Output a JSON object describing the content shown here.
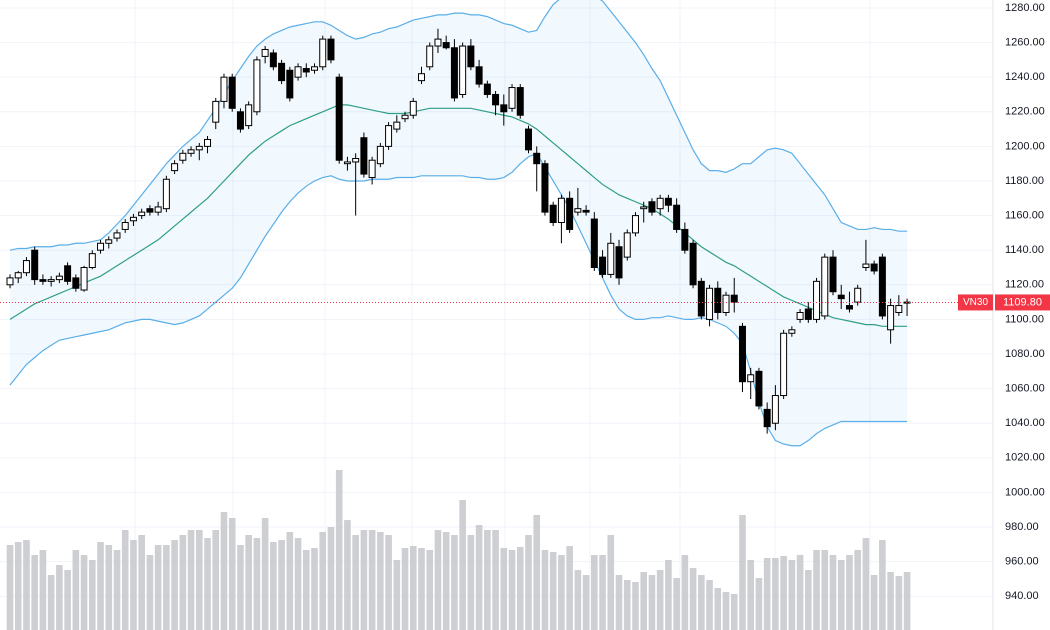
{
  "chart_data": {
    "type": "candlestick",
    "open": [
      1120,
      1124,
      1127,
      1140,
      1123,
      1122,
      1123,
      1131,
      1124,
      1117,
      1130,
      1140,
      1144,
      1147,
      1152,
      1157,
      1160,
      1164,
      1162,
      1164,
      1186,
      1192,
      1196,
      1198,
      1200,
      1214,
      1226,
      1240,
      1220,
      1212,
      1220,
      1252,
      1254,
      1248,
      1244,
      1240,
      1245,
      1244,
      1246,
      1262,
      1240,
      1190,
      1191,
      1205,
      1182,
      1190,
      1200,
      1210,
      1216,
      1218,
      1238,
      1246,
      1258,
      1260,
      1257,
      1230,
      1258,
      1246,
      1236,
      1230,
      1224,
      1222,
      1234,
      1210,
      1196,
      1190,
      1166,
      1156,
      1170,
      1162,
      1163,
      1158,
      1136,
      1126,
      1142,
      1136,
      1150,
      1164,
      1168,
      1164,
      1170,
      1166,
      1152,
      1144,
      1122,
      1100,
      1118,
      1104,
      1114,
      1096,
      1064,
      1070,
      1048,
      1040,
      1056,
      1092,
      1100,
      1106,
      1100,
      1102,
      1136,
      1114,
      1108,
      1110,
      1130,
      1132,
      1136,
      1094,
      1104,
      1110
    ],
    "high": [
      1126,
      1128,
      1136,
      1142,
      1126,
      1125,
      1127,
      1133,
      1126,
      1131,
      1140,
      1146,
      1148,
      1152,
      1158,
      1161,
      1164,
      1166,
      1168,
      1183,
      1192,
      1198,
      1200,
      1202,
      1206,
      1228,
      1242,
      1242,
      1222,
      1226,
      1252,
      1258,
      1256,
      1250,
      1246,
      1248,
      1248,
      1248,
      1264,
      1264,
      1242,
      1194,
      1196,
      1208,
      1194,
      1202,
      1214,
      1218,
      1220,
      1228,
      1246,
      1260,
      1268,
      1264,
      1262,
      1260,
      1262,
      1250,
      1238,
      1232,
      1230,
      1236,
      1236,
      1212,
      1200,
      1192,
      1168,
      1172,
      1174,
      1176,
      1166,
      1162,
      1140,
      1150,
      1146,
      1152,
      1162,
      1168,
      1170,
      1172,
      1172,
      1170,
      1156,
      1146,
      1124,
      1120,
      1122,
      1116,
      1124,
      1098,
      1072,
      1072,
      1052,
      1062,
      1094,
      1096,
      1106,
      1110,
      1124,
      1138,
      1140,
      1120,
      1116,
      1120,
      1146,
      1134,
      1138,
      1112,
      1114,
      1112
    ],
    "low": [
      1118,
      1121,
      1125,
      1120,
      1120,
      1119,
      1121,
      1120,
      1116,
      1116,
      1129,
      1138,
      1141,
      1145,
      1150,
      1154,
      1158,
      1160,
      1160,
      1162,
      1184,
      1190,
      1194,
      1192,
      1196,
      1210,
      1222,
      1220,
      1208,
      1210,
      1218,
      1248,
      1244,
      1236,
      1226,
      1238,
      1240,
      1242,
      1244,
      1248,
      1190,
      1186,
      1160,
      1182,
      1178,
      1188,
      1198,
      1208,
      1214,
      1216,
      1236,
      1244,
      1254,
      1256,
      1226,
      1228,
      1244,
      1234,
      1228,
      1218,
      1212,
      1220,
      1216,
      1196,
      1174,
      1160,
      1154,
      1144,
      1150,
      1160,
      1160,
      1128,
      1124,
      1124,
      1120,
      1134,
      1148,
      1156,
      1160,
      1160,
      1162,
      1150,
      1138,
      1118,
      1100,
      1096,
      1100,
      1102,
      1104,
      1058,
      1054,
      1048,
      1034,
      1036,
      1054,
      1090,
      1098,
      1098,
      1098,
      1100,
      1114,
      1106,
      1104,
      1108,
      1128,
      1126,
      1100,
      1086,
      1102,
      1102
    ],
    "close": [
      1124,
      1127,
      1134,
      1123,
      1122,
      1123,
      1125,
      1122,
      1118,
      1130,
      1138,
      1144,
      1146,
      1150,
      1156,
      1159,
      1162,
      1162,
      1165,
      1181,
      1190,
      1196,
      1198,
      1200,
      1204,
      1226,
      1240,
      1222,
      1210,
      1224,
      1250,
      1256,
      1246,
      1238,
      1228,
      1246,
      1243,
      1246,
      1262,
      1250,
      1192,
      1191,
      1193,
      1184,
      1192,
      1200,
      1212,
      1214,
      1218,
      1226,
      1242,
      1258,
      1262,
      1257,
      1228,
      1258,
      1246,
      1236,
      1230,
      1224,
      1220,
      1234,
      1218,
      1198,
      1190,
      1162,
      1156,
      1170,
      1152,
      1164,
      1162,
      1130,
      1126,
      1144,
      1124,
      1150,
      1160,
      1165,
      1162,
      1170,
      1166,
      1152,
      1140,
      1120,
      1102,
      1118,
      1104,
      1114,
      1110,
      1064,
      1068,
      1050,
      1038,
      1056,
      1092,
      1094,
      1104,
      1100,
      1122,
      1136,
      1116,
      1112,
      1106,
      1118,
      1132,
      1128,
      1102,
      1108,
      1108,
      1109.8
    ],
    "up_color": "#ffffff",
    "down_color": "#000000",
    "wick_color": "#000000",
    "upper_band": {
      "color": "#5aaee8",
      "values": [
        1140,
        1141,
        1141,
        1142,
        1142,
        1142,
        1143,
        1143,
        1144,
        1144,
        1145,
        1146,
        1150,
        1155,
        1160,
        1166,
        1172,
        1178,
        1184,
        1190,
        1195,
        1200,
        1204,
        1208,
        1215,
        1222,
        1230,
        1238,
        1245,
        1252,
        1258,
        1262,
        1265,
        1267,
        1269,
        1270,
        1271,
        1272,
        1272,
        1270,
        1267,
        1264,
        1262,
        1263,
        1265,
        1266,
        1268,
        1269,
        1271,
        1273,
        1274,
        1275,
        1276,
        1276,
        1277,
        1277,
        1276,
        1276,
        1275,
        1273,
        1271,
        1270,
        1268,
        1266,
        1267,
        1275,
        1282,
        1286,
        1287,
        1288,
        1288,
        1287,
        1284,
        1278,
        1272,
        1266,
        1260,
        1253,
        1245,
        1238,
        1228,
        1218,
        1208,
        1198,
        1190,
        1186,
        1186,
        1185,
        1187,
        1190,
        1190,
        1194,
        1198,
        1199,
        1198,
        1196,
        1190,
        1184,
        1178,
        1172,
        1164,
        1156,
        1154,
        1152,
        1152,
        1153,
        1152,
        1152,
        1151,
        1151
      ]
    },
    "middle_band": {
      "color": "#2e9e84",
      "values": [
        1100,
        1103,
        1106,
        1109,
        1111,
        1113,
        1115,
        1117,
        1119,
        1121,
        1123,
        1125,
        1128,
        1131,
        1134,
        1137,
        1140,
        1143,
        1146,
        1150,
        1154,
        1158,
        1162,
        1166,
        1170,
        1175,
        1180,
        1185,
        1190,
        1195,
        1199,
        1203,
        1206,
        1209,
        1212,
        1214,
        1216,
        1218,
        1220,
        1222,
        1224,
        1224,
        1223,
        1222,
        1221,
        1220,
        1219,
        1219,
        1219,
        1220,
        1221,
        1222,
        1222,
        1222,
        1222,
        1222,
        1222,
        1221,
        1220,
        1219,
        1218,
        1217,
        1215,
        1213,
        1210,
        1206,
        1202,
        1198,
        1194,
        1190,
        1186,
        1182,
        1178,
        1175,
        1172,
        1170,
        1168,
        1166,
        1164,
        1161,
        1158,
        1154,
        1150,
        1146,
        1142,
        1139,
        1136,
        1133,
        1131,
        1128,
        1125,
        1122,
        1119,
        1116,
        1113,
        1111,
        1109,
        1107,
        1105,
        1103,
        1101,
        1100,
        1099,
        1098,
        1097,
        1097,
        1096,
        1096,
        1096,
        1096
      ]
    },
    "lower_band": {
      "color": "#5aaee8",
      "values": [
        1062,
        1068,
        1074,
        1078,
        1082,
        1085,
        1088,
        1089,
        1090,
        1091,
        1092,
        1093,
        1094,
        1096,
        1098,
        1099,
        1100,
        1100,
        1099,
        1098,
        1097,
        1098,
        1100,
        1102,
        1106,
        1110,
        1114,
        1118,
        1124,
        1132,
        1140,
        1148,
        1155,
        1162,
        1168,
        1173,
        1177,
        1180,
        1182,
        1183,
        1181,
        1180,
        1180,
        1180,
        1181,
        1181,
        1181,
        1182,
        1182,
        1182,
        1183,
        1183,
        1183,
        1183,
        1183,
        1183,
        1182,
        1182,
        1181,
        1181,
        1182,
        1185,
        1190,
        1194,
        1196,
        1188,
        1180,
        1172,
        1164,
        1154,
        1144,
        1134,
        1124,
        1114,
        1106,
        1102,
        1100,
        1100,
        1101,
        1101,
        1102,
        1101,
        1100,
        1100,
        1101,
        1100,
        1098,
        1096,
        1092,
        1086,
        1070,
        1052,
        1038,
        1030,
        1028,
        1027,
        1027,
        1030,
        1034,
        1037,
        1039,
        1041,
        1041,
        1041,
        1041,
        1041,
        1041,
        1041,
        1041,
        1041
      ]
    },
    "volume": {
      "color": "#c6c7cb",
      "values": [
        85,
        88,
        90,
        75,
        80,
        55,
        65,
        60,
        80,
        75,
        70,
        88,
        85,
        80,
        100,
        90,
        95,
        75,
        85,
        85,
        90,
        95,
        100,
        100,
        92,
        100,
        118,
        112,
        85,
        95,
        92,
        112,
        88,
        90,
        98,
        92,
        80,
        82,
        98,
        103,
        160,
        110,
        95,
        100,
        100,
        98,
        95,
        70,
        82,
        84,
        82,
        80,
        100,
        98,
        95,
        130,
        95,
        105,
        100,
        100,
        82,
        80,
        83,
        95,
        115,
        80,
        78,
        75,
        84,
        60,
        55,
        75,
        75,
        95,
        55,
        50,
        48,
        58,
        55,
        60,
        70,
        52,
        75,
        62,
        55,
        50,
        42,
        38,
        36,
        115,
        70,
        52,
        72,
        72,
        74,
        70,
        75,
        60,
        80,
        80,
        75,
        70,
        75,
        80,
        92,
        55,
        90,
        58,
        54,
        58
      ]
    },
    "ylim": [
      920.5,
      1284.6
    ],
    "yticks": [
      {
        "value": 940,
        "label": "940.00"
      },
      {
        "value": 960,
        "label": "960.00"
      },
      {
        "value": 980,
        "label": "980.00"
      },
      {
        "value": 1000,
        "label": "1000.00"
      },
      {
        "value": 1020,
        "label": "1020.00"
      },
      {
        "value": 1040,
        "label": "1040.00"
      },
      {
        "value": 1060,
        "label": "1060.00"
      },
      {
        "value": 1080,
        "label": "1080.00"
      },
      {
        "value": 1100,
        "label": "1100.00"
      },
      {
        "value": 1120,
        "label": "1120.00"
      },
      {
        "value": 1140,
        "label": "1140.00"
      },
      {
        "value": 1160,
        "label": "1160.00"
      },
      {
        "value": 1180,
        "label": "1180.00"
      },
      {
        "value": 1200,
        "label": "1200.00"
      },
      {
        "value": 1220,
        "label": "1220.00"
      },
      {
        "value": 1240,
        "label": "1240.00"
      },
      {
        "value": 1260,
        "label": "1260.00"
      },
      {
        "value": 1280,
        "label": "1280.00"
      }
    ],
    "grid": true,
    "price_marker": {
      "name": "VN30",
      "value": 1109.8,
      "label": "1109.80",
      "color": "#f23645"
    }
  }
}
